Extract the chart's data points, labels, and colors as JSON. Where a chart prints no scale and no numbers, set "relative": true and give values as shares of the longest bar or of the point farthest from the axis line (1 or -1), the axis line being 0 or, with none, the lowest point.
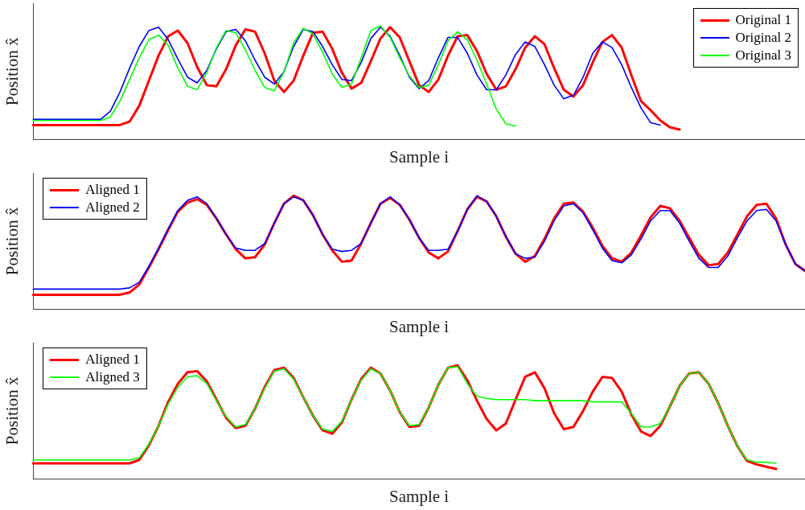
{
  "chart_data": [
    {
      "type": "line",
      "xlabel": "Sample i",
      "ylabel": "Position x̂",
      "relative": true,
      "legend": "top right",
      "marker": "none",
      "line_style": "solid",
      "categories": [
        null,
        null,
        null,
        null,
        null,
        null,
        null,
        null,
        null,
        null,
        null,
        null,
        null,
        null,
        null,
        null,
        null,
        null,
        null,
        null,
        null,
        null,
        null,
        null,
        null,
        null,
        null,
        null,
        null,
        null,
        null,
        null,
        null,
        null,
        null,
        null,
        null,
        null,
        null,
        null,
        null,
        null,
        null,
        null,
        null,
        null,
        null,
        null,
        null,
        null,
        null,
        null,
        null,
        null,
        null,
        null,
        null,
        null,
        null,
        null,
        null,
        null,
        null,
        null,
        null,
        null,
        null,
        null,
        null,
        null,
        null,
        null,
        null,
        null,
        null,
        null,
        null,
        null,
        null,
        null,
        null
      ],
      "series": [
        {
          "name": "Original 1",
          "color": "#ff0000",
          "values": [
            0.13,
            0.13,
            0.13,
            0.13,
            0.13,
            0.13,
            0.13,
            0.13,
            0.13,
            0.13,
            0.16,
            0.3,
            0.52,
            0.74,
            0.91,
            0.96,
            0.85,
            0.64,
            0.48,
            0.47,
            0.62,
            0.83,
            0.97,
            0.95,
            0.76,
            0.52,
            0.42,
            0.52,
            0.74,
            0.94,
            0.95,
            0.8,
            0.59,
            0.45,
            0.5,
            0.69,
            0.89,
            0.99,
            0.9,
            0.69,
            0.48,
            0.42,
            0.53,
            0.74,
            0.91,
            0.92,
            0.78,
            0.58,
            0.44,
            0.47,
            0.62,
            0.81,
            0.91,
            0.84,
            0.63,
            0.44,
            0.38,
            0.48,
            0.68,
            0.86,
            0.92,
            0.81,
            0.57,
            0.34,
            0.26,
            0.17,
            0.11,
            0.09,
            null,
            null,
            null,
            null,
            null,
            null,
            null,
            null,
            null,
            null,
            null,
            null,
            null
          ]
        },
        {
          "name": "Original 2",
          "color": "#0000ff",
          "values": [
            0.18,
            0.18,
            0.18,
            0.18,
            0.18,
            0.18,
            0.18,
            0.18,
            0.25,
            0.42,
            0.63,
            0.82,
            0.96,
            0.99,
            0.88,
            0.71,
            0.55,
            0.5,
            0.61,
            0.8,
            0.95,
            0.97,
            0.87,
            0.7,
            0.55,
            0.49,
            0.6,
            0.82,
            0.97,
            0.95,
            0.82,
            0.66,
            0.53,
            0.52,
            0.68,
            0.89,
            0.99,
            0.91,
            0.74,
            0.55,
            0.45,
            0.52,
            0.72,
            0.9,
            0.9,
            0.76,
            0.57,
            0.44,
            0.44,
            0.57,
            0.75,
            0.86,
            0.82,
            0.66,
            0.48,
            0.36,
            0.39,
            0.55,
            0.76,
            0.86,
            0.81,
            0.66,
            0.46,
            0.28,
            0.15,
            0.13,
            null,
            null,
            null,
            null,
            null,
            null,
            null,
            null,
            null,
            null,
            null,
            null,
            null,
            null,
            null
          ]
        },
        {
          "name": "Original 3",
          "color": "#00ff00",
          "values": [
            0.17,
            0.17,
            0.17,
            0.17,
            0.17,
            0.17,
            0.17,
            0.17,
            0.2,
            0.34,
            0.53,
            0.72,
            0.88,
            0.92,
            0.83,
            0.63,
            0.47,
            0.44,
            0.59,
            0.81,
            0.96,
            0.94,
            0.79,
            0.61,
            0.46,
            0.43,
            0.6,
            0.85,
            0.98,
            0.93,
            0.77,
            0.58,
            0.46,
            0.49,
            0.72,
            0.96,
            1.0,
            0.9,
            0.72,
            0.56,
            0.46,
            0.48,
            0.66,
            0.87,
            0.95,
            0.88,
            0.7,
            0.49,
            0.27,
            0.14,
            0.12,
            null,
            null,
            null,
            null,
            null,
            null,
            null,
            null,
            null,
            null,
            null,
            null,
            null,
            null,
            null,
            null,
            null,
            null,
            null,
            null,
            null,
            null,
            null,
            null,
            null,
            null,
            null,
            null,
            null,
            null
          ]
        }
      ]
    },
    {
      "type": "line",
      "xlabel": "Sample i",
      "ylabel": "Position x̂",
      "relative": true,
      "legend": "top left",
      "marker": "none",
      "line_style": "solid",
      "categories": [
        null,
        null,
        null,
        null,
        null,
        null,
        null,
        null,
        null,
        null,
        null,
        null,
        null,
        null,
        null,
        null,
        null,
        null,
        null,
        null,
        null,
        null,
        null,
        null,
        null,
        null,
        null,
        null,
        null,
        null,
        null,
        null,
        null,
        null,
        null,
        null,
        null,
        null,
        null,
        null,
        null,
        null,
        null,
        null,
        null,
        null,
        null,
        null,
        null,
        null,
        null,
        null,
        null,
        null,
        null,
        null,
        null,
        null,
        null,
        null,
        null,
        null,
        null,
        null,
        null,
        null,
        null,
        null,
        null,
        null,
        null,
        null,
        null,
        null,
        null,
        null,
        null,
        null,
        null,
        null,
        null
      ],
      "series": [
        {
          "name": "Aligned 1",
          "color": "#ff0000",
          "values": [
            0.13,
            0.13,
            0.13,
            0.13,
            0.13,
            0.13,
            0.13,
            0.13,
            0.13,
            0.13,
            0.15,
            0.22,
            0.37,
            0.53,
            0.7,
            0.86,
            0.94,
            0.97,
            0.92,
            0.8,
            0.66,
            0.53,
            0.45,
            0.46,
            0.57,
            0.76,
            0.93,
            1.0,
            0.96,
            0.83,
            0.66,
            0.52,
            0.42,
            0.43,
            0.58,
            0.76,
            0.93,
            0.98,
            0.92,
            0.79,
            0.63,
            0.5,
            0.45,
            0.51,
            0.69,
            0.88,
            0.99,
            0.95,
            0.82,
            0.64,
            0.49,
            0.42,
            0.47,
            0.62,
            0.8,
            0.93,
            0.94,
            0.86,
            0.72,
            0.56,
            0.45,
            0.42,
            0.5,
            0.65,
            0.81,
            0.91,
            0.89,
            0.78,
            0.63,
            0.48,
            0.39,
            0.4,
            0.5,
            0.66,
            0.82,
            0.92,
            0.93,
            0.8,
            0.57,
            0.4,
            0.34
          ]
        },
        {
          "name": "Aligned 2",
          "color": "#0000ff",
          "values": [
            0.18,
            0.18,
            0.18,
            0.18,
            0.18,
            0.18,
            0.18,
            0.18,
            0.18,
            0.18,
            0.19,
            0.24,
            0.38,
            0.54,
            0.71,
            0.87,
            0.96,
            0.99,
            0.93,
            0.8,
            0.66,
            0.54,
            0.52,
            0.52,
            0.58,
            0.76,
            0.93,
            0.99,
            0.96,
            0.83,
            0.66,
            0.53,
            0.51,
            0.52,
            0.58,
            0.76,
            0.93,
            0.99,
            0.92,
            0.79,
            0.63,
            0.52,
            0.52,
            0.53,
            0.69,
            0.88,
            1.0,
            0.95,
            0.82,
            0.64,
            0.49,
            0.45,
            0.46,
            0.6,
            0.78,
            0.91,
            0.93,
            0.85,
            0.7,
            0.54,
            0.43,
            0.41,
            0.48,
            0.62,
            0.78,
            0.87,
            0.87,
            0.76,
            0.6,
            0.45,
            0.37,
            0.37,
            0.47,
            0.63,
            0.78,
            0.87,
            0.88,
            0.78,
            0.57,
            0.4,
            0.34
          ]
        }
      ]
    },
    {
      "type": "line",
      "xlabel": "Sample i",
      "ylabel": "Position x̂",
      "relative": true,
      "legend": "top left",
      "marker": "none",
      "line_style": "solid",
      "categories": [
        null,
        null,
        null,
        null,
        null,
        null,
        null,
        null,
        null,
        null,
        null,
        null,
        null,
        null,
        null,
        null,
        null,
        null,
        null,
        null,
        null,
        null,
        null,
        null,
        null,
        null,
        null,
        null,
        null,
        null,
        null,
        null,
        null,
        null,
        null,
        null,
        null,
        null,
        null,
        null,
        null,
        null,
        null,
        null,
        null,
        null,
        null,
        null,
        null,
        null,
        null,
        null,
        null,
        null,
        null,
        null,
        null,
        null,
        null,
        null,
        null,
        null,
        null,
        null,
        null,
        null,
        null,
        null,
        null,
        null,
        null,
        null,
        null,
        null,
        null,
        null,
        null,
        null,
        null,
        null,
        null
      ],
      "series": [
        {
          "name": "Aligned 1",
          "color": "#ff0000",
          "values": [
            0.14,
            0.14,
            0.14,
            0.14,
            0.14,
            0.14,
            0.14,
            0.14,
            0.14,
            0.14,
            0.14,
            0.17,
            0.3,
            0.47,
            0.68,
            0.84,
            0.94,
            0.95,
            0.86,
            0.7,
            0.54,
            0.45,
            0.47,
            0.62,
            0.81,
            0.96,
            0.98,
            0.89,
            0.72,
            0.56,
            0.43,
            0.4,
            0.5,
            0.7,
            0.88,
            0.98,
            0.93,
            0.78,
            0.59,
            0.46,
            0.47,
            0.63,
            0.83,
            0.98,
            1.0,
            0.87,
            0.69,
            0.53,
            0.43,
            0.49,
            0.7,
            0.9,
            0.94,
            0.8,
            0.58,
            0.44,
            0.46,
            0.6,
            0.77,
            0.9,
            0.89,
            0.77,
            0.57,
            0.42,
            0.38,
            0.47,
            0.64,
            0.82,
            0.93,
            0.94,
            0.84,
            0.67,
            0.47,
            0.29,
            0.16,
            0.13,
            0.11,
            0.09,
            null,
            null,
            null
          ]
        },
        {
          "name": "Aligned 3",
          "color": "#00ff00",
          "values": [
            0.17,
            0.17,
            0.17,
            0.17,
            0.17,
            0.17,
            0.17,
            0.17,
            0.17,
            0.17,
            0.17,
            0.19,
            0.31,
            0.47,
            0.66,
            0.81,
            0.9,
            0.91,
            0.84,
            0.69,
            0.55,
            0.46,
            0.48,
            0.62,
            0.8,
            0.95,
            0.97,
            0.88,
            0.72,
            0.56,
            0.44,
            0.42,
            0.51,
            0.7,
            0.87,
            0.97,
            0.93,
            0.78,
            0.59,
            0.47,
            0.48,
            0.63,
            0.83,
            0.98,
            0.99,
            0.84,
            0.73,
            0.71,
            0.7,
            0.7,
            0.7,
            0.7,
            0.69,
            0.69,
            0.69,
            0.69,
            0.69,
            0.69,
            0.68,
            0.68,
            0.68,
            0.68,
            0.58,
            0.46,
            0.46,
            0.49,
            0.64,
            0.82,
            0.93,
            0.94,
            0.84,
            0.67,
            0.47,
            0.29,
            0.17,
            0.15,
            0.15,
            0.14,
            null,
            null,
            null
          ]
        }
      ]
    }
  ]
}
